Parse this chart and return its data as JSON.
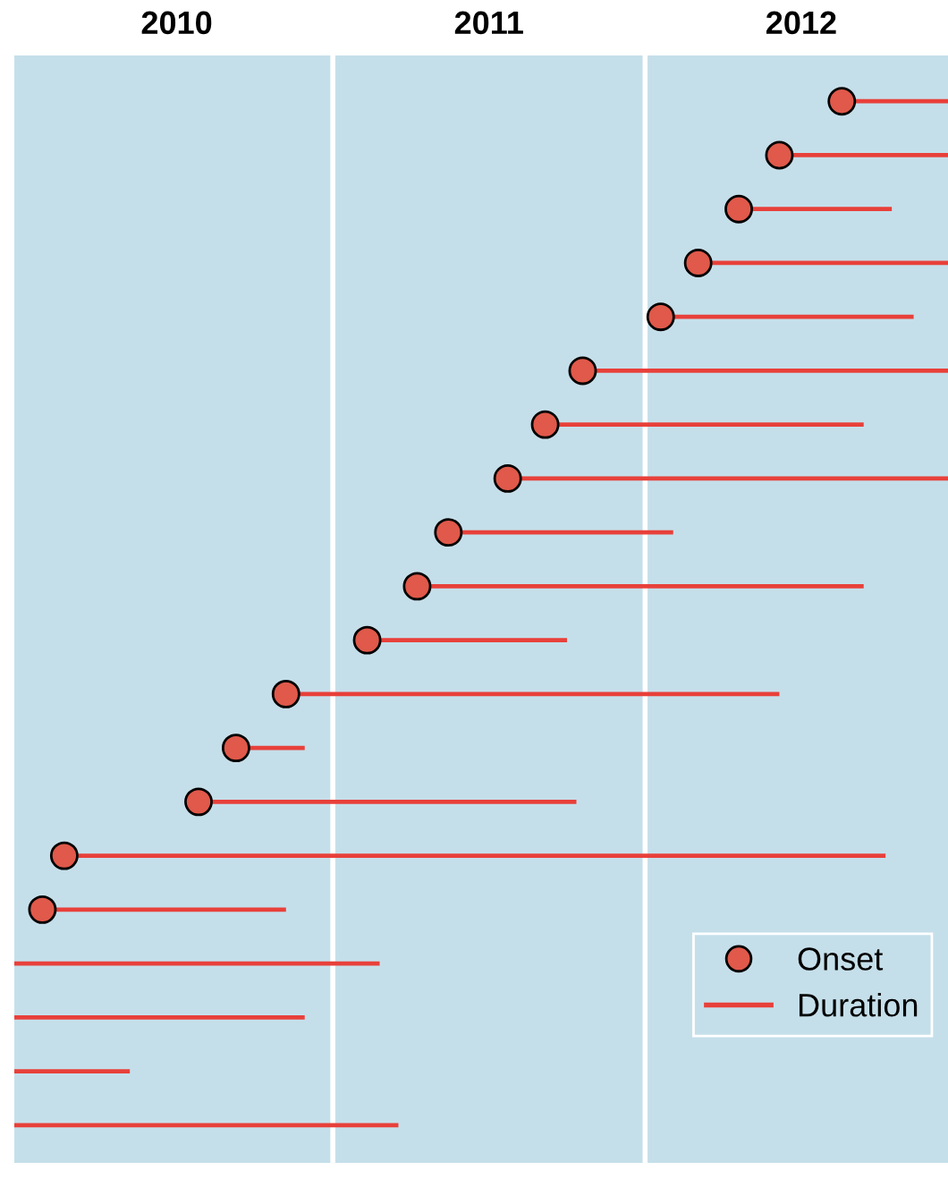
{
  "chart_data": {
    "type": "bar",
    "orientation": "horizontal",
    "categories": [
      null,
      null,
      null,
      null,
      null,
      null,
      null,
      null,
      null,
      null,
      null,
      null,
      null,
      null,
      null,
      null,
      null,
      null,
      null,
      null
    ],
    "series": [
      {
        "name": "Duration",
        "color": "#e8403a",
        "base": [
          2012.63,
          2012.43,
          2012.3,
          2012.17,
          2012.05,
          2011.8,
          2011.68,
          2011.56,
          2011.37,
          2011.27,
          2011.11,
          2010.85,
          2010.69,
          2010.57,
          2010.14,
          2010.07,
          2009.98,
          2009.98,
          2009.98,
          2009.98
        ],
        "values": [
          0.34,
          0.54,
          0.49,
          0.8,
          0.81,
          1.17,
          1.02,
          1.41,
          0.72,
          1.43,
          0.64,
          1.58,
          0.22,
          1.21,
          2.63,
          0.78,
          1.17,
          0.93,
          0.37,
          1.23
        ]
      },
      {
        "name": "Onset",
        "type": "scatter",
        "color": "#e0594a",
        "values": [
          2012.63,
          2012.43,
          2012.3,
          2012.17,
          2012.05,
          2011.8,
          2011.68,
          2011.56,
          2011.37,
          2011.27,
          2011.11,
          2010.85,
          2010.69,
          2010.57,
          2010.14,
          2010.07,
          null,
          null,
          null,
          null
        ]
      }
    ],
    "xlim": [
      2009.98,
      2012.97
    ],
    "xticks": [
      {
        "value": 2010.5,
        "label": "2010"
      },
      {
        "value": 2011.5,
        "label": "2011"
      },
      {
        "value": 2012.5,
        "label": "2012"
      }
    ],
    "ref_lines": [
      {
        "axis": "x",
        "value": 2011,
        "color": "#ffffff"
      },
      {
        "axis": "x",
        "value": 2012,
        "color": "#ffffff"
      }
    ],
    "grid": false,
    "legend": "bottom right",
    "marker": "circle"
  }
}
